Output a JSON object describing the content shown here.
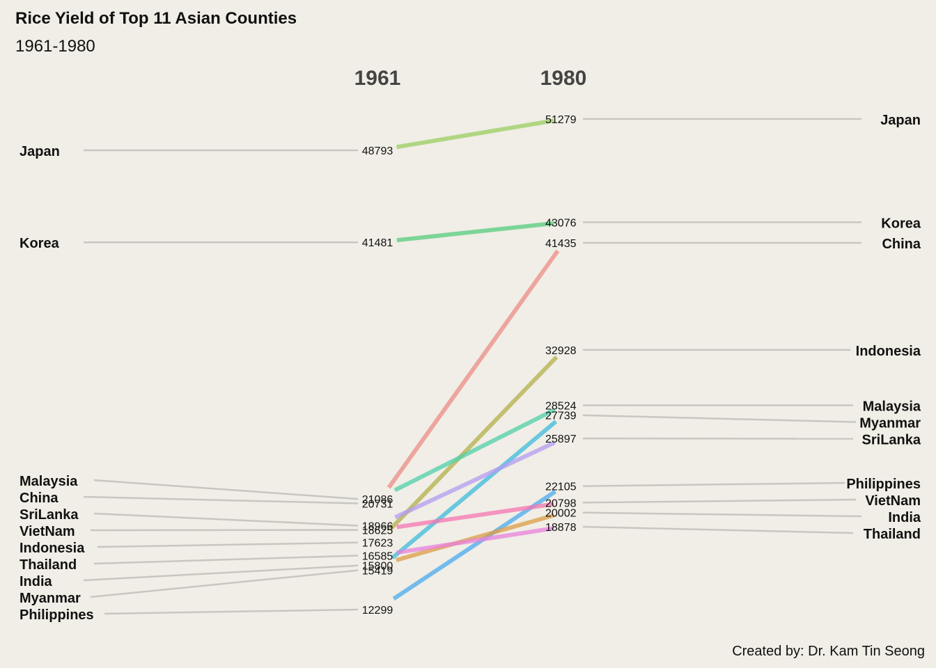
{
  "chart_data": {
    "type": "slope",
    "title": "Rice Yield of Top 11 Asian Counties",
    "subtitle": "1961-1980",
    "caption": "Created by: Dr. Kam Tin Seong",
    "years": [
      "1961",
      "1980"
    ],
    "series": [
      {
        "name": "Japan",
        "v1961": 48793,
        "v1980": 51279,
        "color": "#9bcd5f"
      },
      {
        "name": "Korea",
        "v1961": 41481,
        "v1980": 43076,
        "color": "#55cc7c"
      },
      {
        "name": "China",
        "v1961": 20731,
        "v1980": 41435,
        "color": "#ee8b86"
      },
      {
        "name": "Indonesia",
        "v1961": 17623,
        "v1980": 32928,
        "color": "#b3b048"
      },
      {
        "name": "Malaysia",
        "v1961": 21086,
        "v1980": 28524,
        "color": "#4fcfaa"
      },
      {
        "name": "Myanmar",
        "v1961": 15419,
        "v1980": 27739,
        "color": "#3cbbdb"
      },
      {
        "name": "SriLanka",
        "v1961": 18966,
        "v1980": 25897,
        "color": "#b49bf2"
      },
      {
        "name": "Philippines",
        "v1961": 12299,
        "v1980": 22105,
        "color": "#4aaaee"
      },
      {
        "name": "VietNam",
        "v1961": 18625,
        "v1980": 20798,
        "color": "#f576b2"
      },
      {
        "name": "India",
        "v1961": 15800,
        "v1980": 20002,
        "color": "#dc9c45"
      },
      {
        "name": "Thailand",
        "v1961": 16585,
        "v1980": 18878,
        "color": "#e880dc"
      }
    ]
  }
}
